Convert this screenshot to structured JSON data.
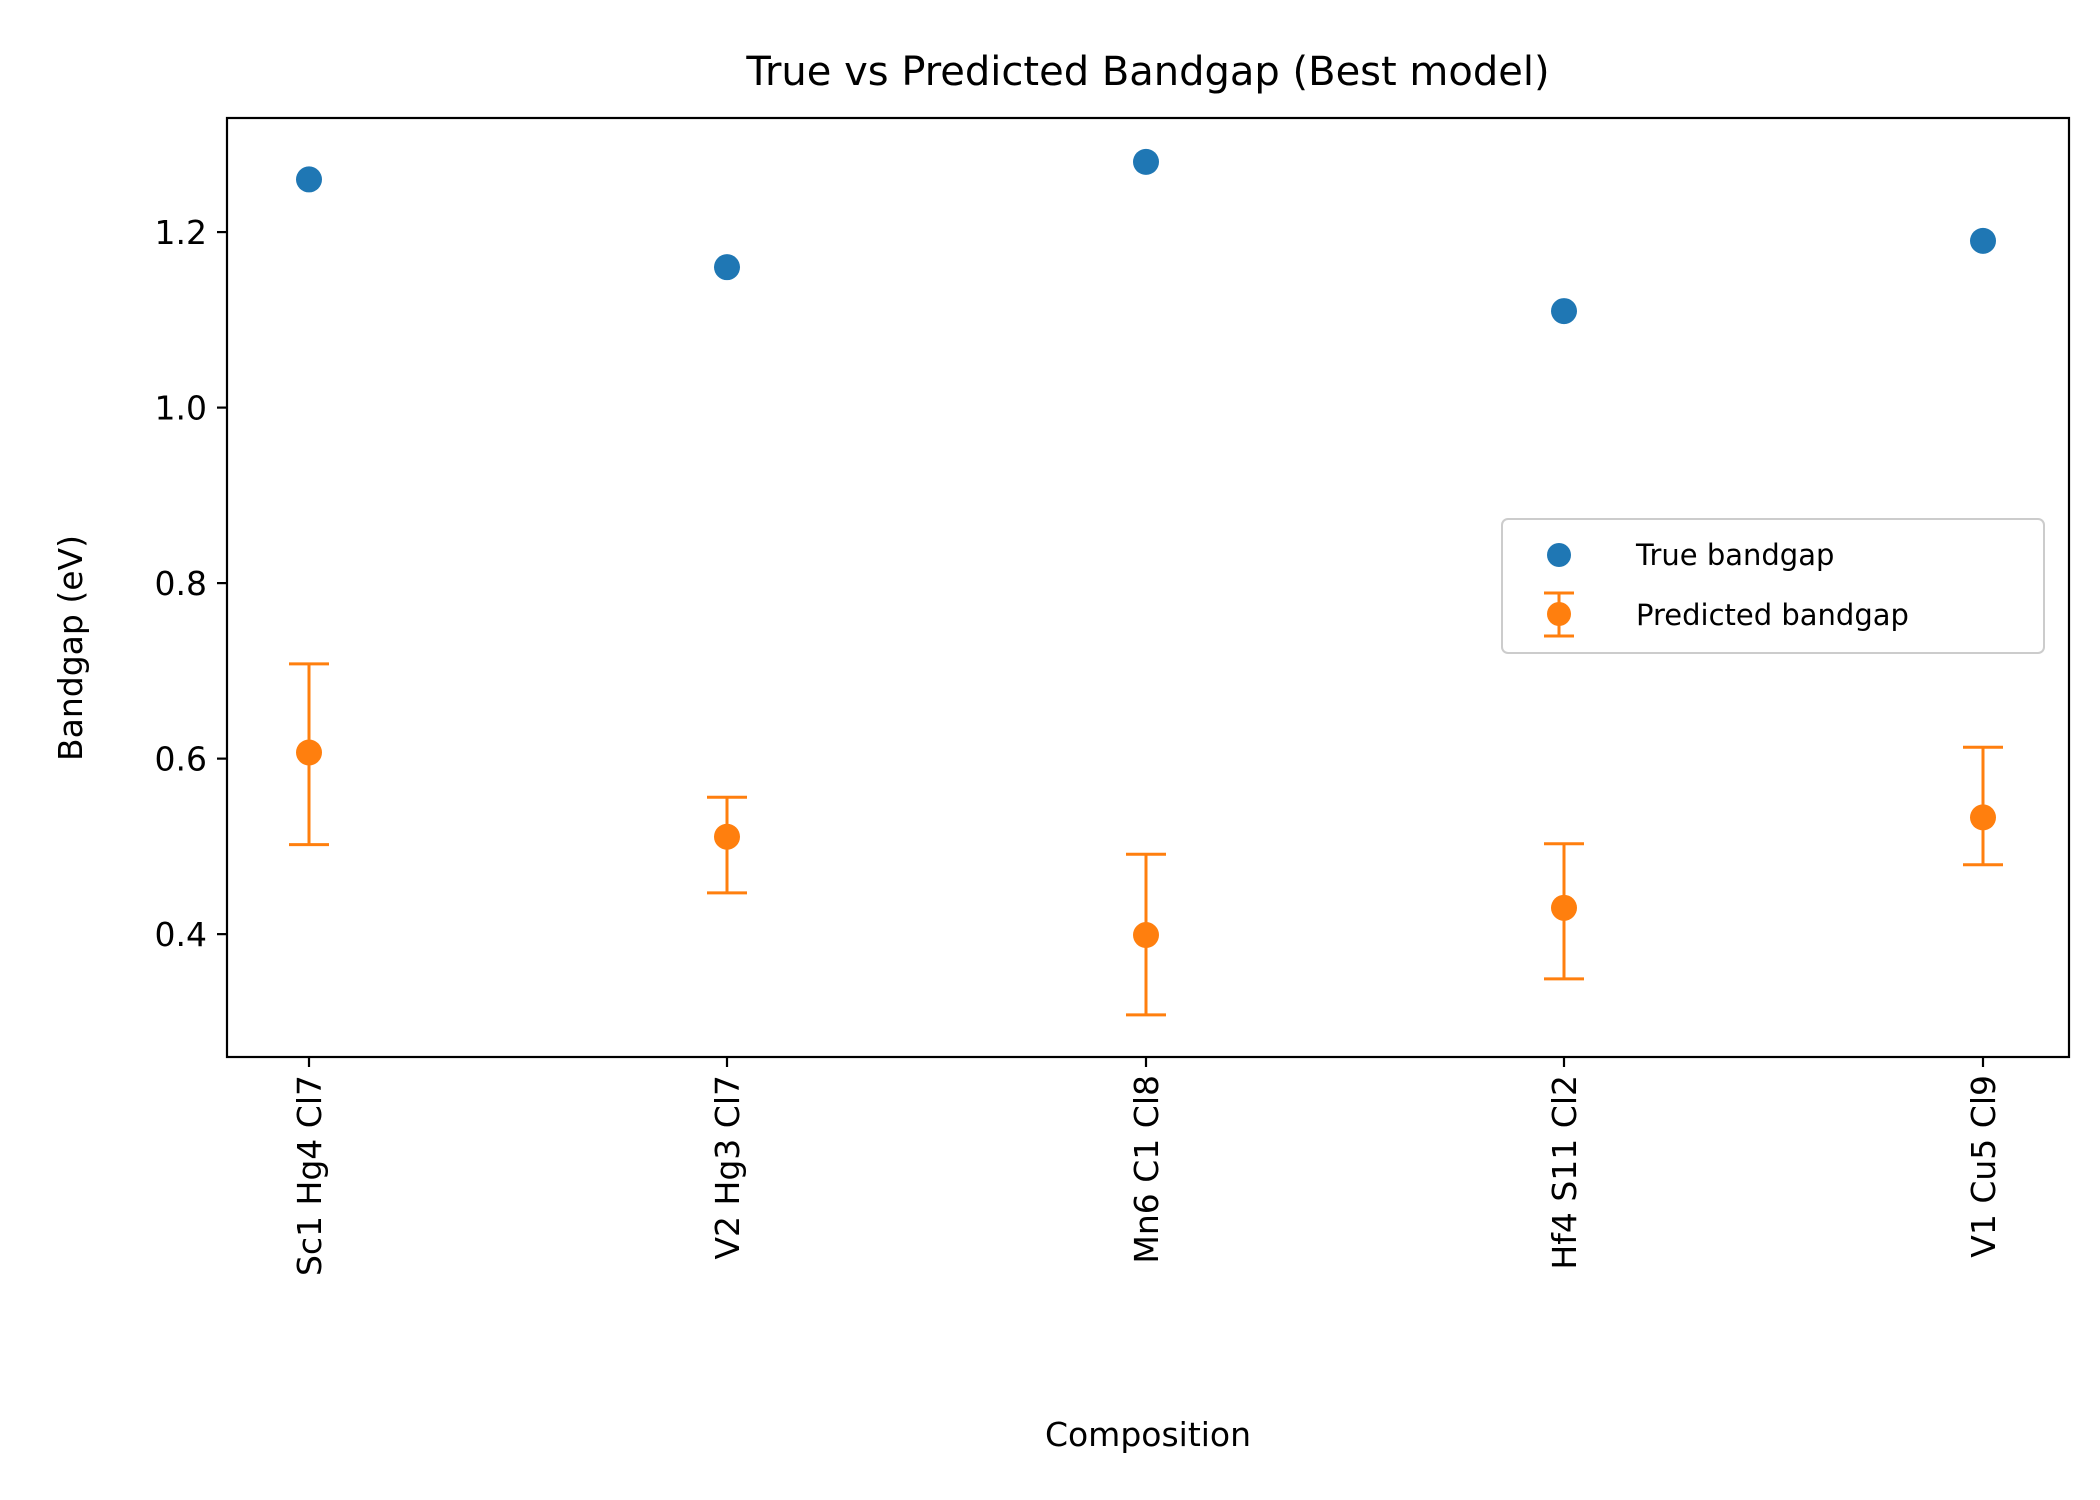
{
  "chart_data": {
    "type": "scatter",
    "title": "True vs Predicted Bandgap (Best model)",
    "xlabel": "Composition",
    "ylabel": "Bandgap (eV)",
    "categories": [
      "Sc1 Hg4 Cl7",
      "V2 Hg3 Cl7",
      "Mn6 C1 Cl8",
      "Hf4 S11 Cl2",
      "V1 Cu5 Cl9"
    ],
    "ylim": [
      0.26,
      1.33
    ],
    "yticks": [
      0.4,
      0.6,
      0.8,
      1.0,
      1.2
    ],
    "ytick_labels": [
      "0.4",
      "0.6",
      "0.8",
      "1.0",
      "1.2"
    ],
    "grid": false,
    "legend_position": "center-right",
    "series": [
      {
        "name": "True bandgap",
        "kind": "scatter",
        "color": "#1f77b4",
        "values": [
          1.26,
          1.16,
          1.28,
          1.11,
          1.19
        ]
      },
      {
        "name": "Predicted bandgap",
        "kind": "errorbar",
        "color": "#ff7f0e",
        "values": [
          0.607,
          0.511,
          0.399,
          0.43,
          0.533
        ],
        "lower": [
          0.502,
          0.447,
          0.308,
          0.349,
          0.479
        ],
        "upper": [
          0.708,
          0.556,
          0.491,
          0.503,
          0.613
        ]
      }
    ]
  }
}
